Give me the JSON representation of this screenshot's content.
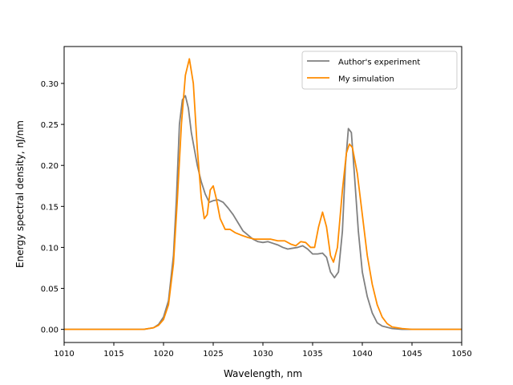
{
  "chart_data": {
    "type": "line",
    "title": "",
    "xlabel": "Wavelength, nm",
    "ylabel": "Energy spectral density, nJ/nm",
    "xlim": [
      1010,
      1050
    ],
    "ylim": [
      -0.016,
      0.345
    ],
    "xticks": [
      1010,
      1015,
      1020,
      1025,
      1030,
      1035,
      1040,
      1045,
      1050
    ],
    "xtick_labels": [
      "1010",
      "1015",
      "1020",
      "1025",
      "1030",
      "1035",
      "1040",
      "1045",
      "1050"
    ],
    "yticks": [
      0.0,
      0.05,
      0.1,
      0.15,
      0.2,
      0.25,
      0.3
    ],
    "ytick_labels": [
      "0.00",
      "0.05",
      "0.10",
      "0.15",
      "0.20",
      "0.25",
      "0.30"
    ],
    "grid": false,
    "legend_position": "top-right",
    "series": [
      {
        "name": "Author's experiment",
        "color": "#808080",
        "points": [
          [
            1010,
            0.0
          ],
          [
            1018,
            0.0
          ],
          [
            1019,
            0.002
          ],
          [
            1019.5,
            0.006
          ],
          [
            1020,
            0.015
          ],
          [
            1020.5,
            0.035
          ],
          [
            1021,
            0.09
          ],
          [
            1021.3,
            0.16
          ],
          [
            1021.6,
            0.25
          ],
          [
            1021.9,
            0.28
          ],
          [
            1022.2,
            0.285
          ],
          [
            1022.5,
            0.27
          ],
          [
            1022.8,
            0.24
          ],
          [
            1023.1,
            0.22
          ],
          [
            1023.4,
            0.2
          ],
          [
            1023.8,
            0.18
          ],
          [
            1024.2,
            0.165
          ],
          [
            1024.6,
            0.155
          ],
          [
            1025,
            0.157
          ],
          [
            1025.5,
            0.158
          ],
          [
            1026,
            0.155
          ],
          [
            1026.5,
            0.148
          ],
          [
            1027,
            0.14
          ],
          [
            1027.5,
            0.13
          ],
          [
            1028,
            0.12
          ],
          [
            1028.5,
            0.115
          ],
          [
            1029,
            0.11
          ],
          [
            1029.5,
            0.107
          ],
          [
            1030,
            0.106
          ],
          [
            1030.5,
            0.107
          ],
          [
            1031,
            0.105
          ],
          [
            1031.5,
            0.103
          ],
          [
            1032,
            0.1
          ],
          [
            1032.5,
            0.098
          ],
          [
            1033,
            0.099
          ],
          [
            1033.5,
            0.1
          ],
          [
            1034,
            0.102
          ],
          [
            1034.5,
            0.098
          ],
          [
            1035,
            0.092
          ],
          [
            1035.5,
            0.092
          ],
          [
            1036,
            0.093
          ],
          [
            1036.4,
            0.088
          ],
          [
            1036.8,
            0.07
          ],
          [
            1037.2,
            0.063
          ],
          [
            1037.6,
            0.07
          ],
          [
            1038,
            0.12
          ],
          [
            1038.3,
            0.2
          ],
          [
            1038.6,
            0.245
          ],
          [
            1038.9,
            0.24
          ],
          [
            1039.2,
            0.19
          ],
          [
            1039.6,
            0.12
          ],
          [
            1040,
            0.07
          ],
          [
            1040.5,
            0.04
          ],
          [
            1041,
            0.02
          ],
          [
            1041.5,
            0.008
          ],
          [
            1042,
            0.004
          ],
          [
            1043,
            0.001
          ],
          [
            1044,
            0.0
          ],
          [
            1050,
            0.0
          ]
        ]
      },
      {
        "name": "My simulation",
        "color": "#ff8c00",
        "points": [
          [
            1010,
            0.0
          ],
          [
            1018,
            0.0
          ],
          [
            1019,
            0.002
          ],
          [
            1019.5,
            0.005
          ],
          [
            1020,
            0.012
          ],
          [
            1020.5,
            0.03
          ],
          [
            1021,
            0.08
          ],
          [
            1021.4,
            0.16
          ],
          [
            1021.8,
            0.25
          ],
          [
            1022.2,
            0.31
          ],
          [
            1022.6,
            0.33
          ],
          [
            1023,
            0.3
          ],
          [
            1023.4,
            0.22
          ],
          [
            1023.8,
            0.16
          ],
          [
            1024.1,
            0.135
          ],
          [
            1024.4,
            0.14
          ],
          [
            1024.7,
            0.17
          ],
          [
            1025,
            0.175
          ],
          [
            1025.3,
            0.16
          ],
          [
            1025.7,
            0.135
          ],
          [
            1026.2,
            0.122
          ],
          [
            1026.7,
            0.122
          ],
          [
            1027.2,
            0.118
          ],
          [
            1027.8,
            0.115
          ],
          [
            1028.5,
            0.112
          ],
          [
            1029.2,
            0.11
          ],
          [
            1030,
            0.11
          ],
          [
            1030.8,
            0.11
          ],
          [
            1031.5,
            0.108
          ],
          [
            1032.2,
            0.108
          ],
          [
            1032.8,
            0.104
          ],
          [
            1033.3,
            0.102
          ],
          [
            1033.8,
            0.107
          ],
          [
            1034.3,
            0.106
          ],
          [
            1034.8,
            0.1
          ],
          [
            1035.2,
            0.1
          ],
          [
            1035.6,
            0.125
          ],
          [
            1036,
            0.143
          ],
          [
            1036.4,
            0.125
          ],
          [
            1036.8,
            0.09
          ],
          [
            1037.1,
            0.082
          ],
          [
            1037.5,
            0.1
          ],
          [
            1038,
            0.17
          ],
          [
            1038.4,
            0.215
          ],
          [
            1038.7,
            0.226
          ],
          [
            1039,
            0.222
          ],
          [
            1039.5,
            0.19
          ],
          [
            1040,
            0.14
          ],
          [
            1040.5,
            0.09
          ],
          [
            1041,
            0.055
          ],
          [
            1041.5,
            0.03
          ],
          [
            1042,
            0.015
          ],
          [
            1042.5,
            0.007
          ],
          [
            1043,
            0.003
          ],
          [
            1044,
            0.001
          ],
          [
            1045,
            0.0
          ],
          [
            1050,
            0.0
          ]
        ]
      }
    ]
  }
}
